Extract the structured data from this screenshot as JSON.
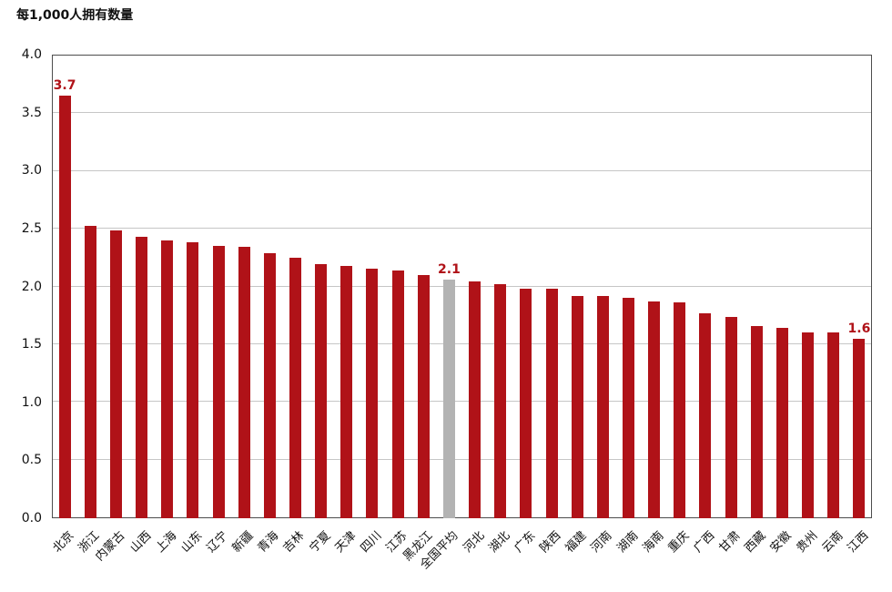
{
  "title": "每1,000人拥有数量",
  "chart_data": {
    "type": "bar",
    "title": "每1,000人拥有数量",
    "xlabel": "",
    "ylabel": "每1,000人拥有数量",
    "ylim": [
      0,
      4.0
    ],
    "ytick_step": 0.5,
    "yticks": [
      "4.0",
      "3.5",
      "3.0",
      "2.5",
      "2.0",
      "1.5",
      "1.0",
      "0.5",
      "0.0"
    ],
    "grid": true,
    "legend": "none",
    "categories": [
      "北京",
      "浙江",
      "内蒙古",
      "山西",
      "上海",
      "山东",
      "辽宁",
      "新疆",
      "青海",
      "吉林",
      "宁夏",
      "天津",
      "四川",
      "江苏",
      "黑龙江",
      "全国平均",
      "河北",
      "湖北",
      "广东",
      "陕西",
      "福建",
      "河南",
      "湖南",
      "海南",
      "重庆",
      "广西",
      "甘肃",
      "西藏",
      "安徽",
      "贵州",
      "云南",
      "江西"
    ],
    "values": [
      3.65,
      2.52,
      2.48,
      2.43,
      2.4,
      2.38,
      2.35,
      2.34,
      2.29,
      2.25,
      2.19,
      2.18,
      2.15,
      2.14,
      2.1,
      2.06,
      2.04,
      2.02,
      1.98,
      1.98,
      1.92,
      1.92,
      1.9,
      1.87,
      1.86,
      1.77,
      1.74,
      1.66,
      1.64,
      1.6,
      1.6,
      1.55
    ],
    "highlight_index": 15,
    "annotations": [
      {
        "index": 0,
        "category": "北京",
        "text": "3.7"
      },
      {
        "index": 15,
        "category": "全国平均",
        "text": "2.1"
      },
      {
        "index": 31,
        "category": "江西",
        "text": "1.6"
      }
    ],
    "colors": {
      "bar": "#B01218",
      "average_bar": "#B3B3B3",
      "annotation": "#B01218",
      "gridline": "#C6C6C6",
      "axis_border": "#4D4D4D",
      "text": "#111111"
    }
  }
}
